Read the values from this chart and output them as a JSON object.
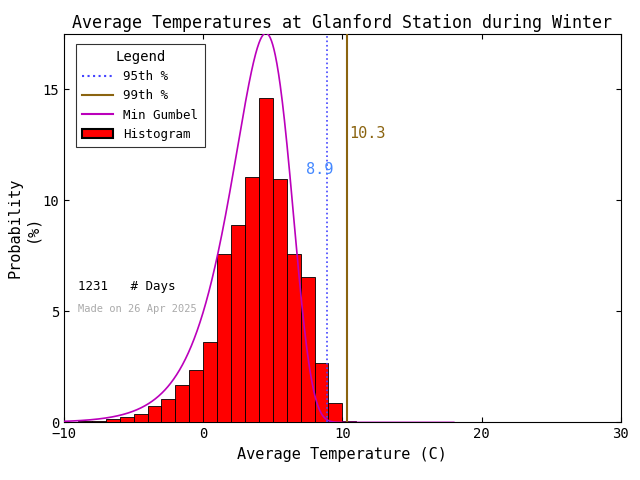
{
  "title": "Average Temperatures at Glanford Station during Winter",
  "xlabel": "Average Temperature (C)",
  "ylabel": "Probability\n(%)",
  "xlim": [
    -10,
    30
  ],
  "ylim": [
    0,
    17.5
  ],
  "yticks": [
    0,
    5,
    10,
    15
  ],
  "xticks": [
    -10,
    0,
    10,
    20,
    30
  ],
  "bin_edges": [
    -9,
    -8,
    -7,
    -6,
    -5,
    -4,
    -3,
    -2,
    -1,
    0,
    1,
    2,
    3,
    4,
    5,
    6,
    7,
    8,
    9,
    10,
    11,
    12,
    13
  ],
  "bin_heights": [
    0.08,
    0.08,
    0.16,
    0.24,
    0.4,
    0.73,
    1.05,
    1.7,
    2.34,
    3.64,
    7.56,
    8.9,
    11.05,
    14.6,
    10.97,
    7.56,
    6.56,
    2.67,
    0.89,
    0.08,
    0.0,
    0.0,
    0.0
  ],
  "bar_color": "#FF0000",
  "bar_edgecolor": "#000000",
  "gumbel_mu": 4.5,
  "gumbel_beta": 2.1,
  "pct_95": 8.9,
  "pct_99": 10.3,
  "n_days": 1231,
  "made_on": "Made on 26 Apr 2025",
  "line_95_color": "#4444FF",
  "line_99_color": "#8B6410",
  "gumbel_color": "#BB00BB",
  "label_95_color": "#4488FF",
  "label_99_color": "#8B6410",
  "legend_fontsize": 9,
  "title_fontsize": 12,
  "axis_fontsize": 11,
  "background_color": "#FFFFFF",
  "tick_color": "#000000",
  "made_on_color": "#AAAAAA"
}
